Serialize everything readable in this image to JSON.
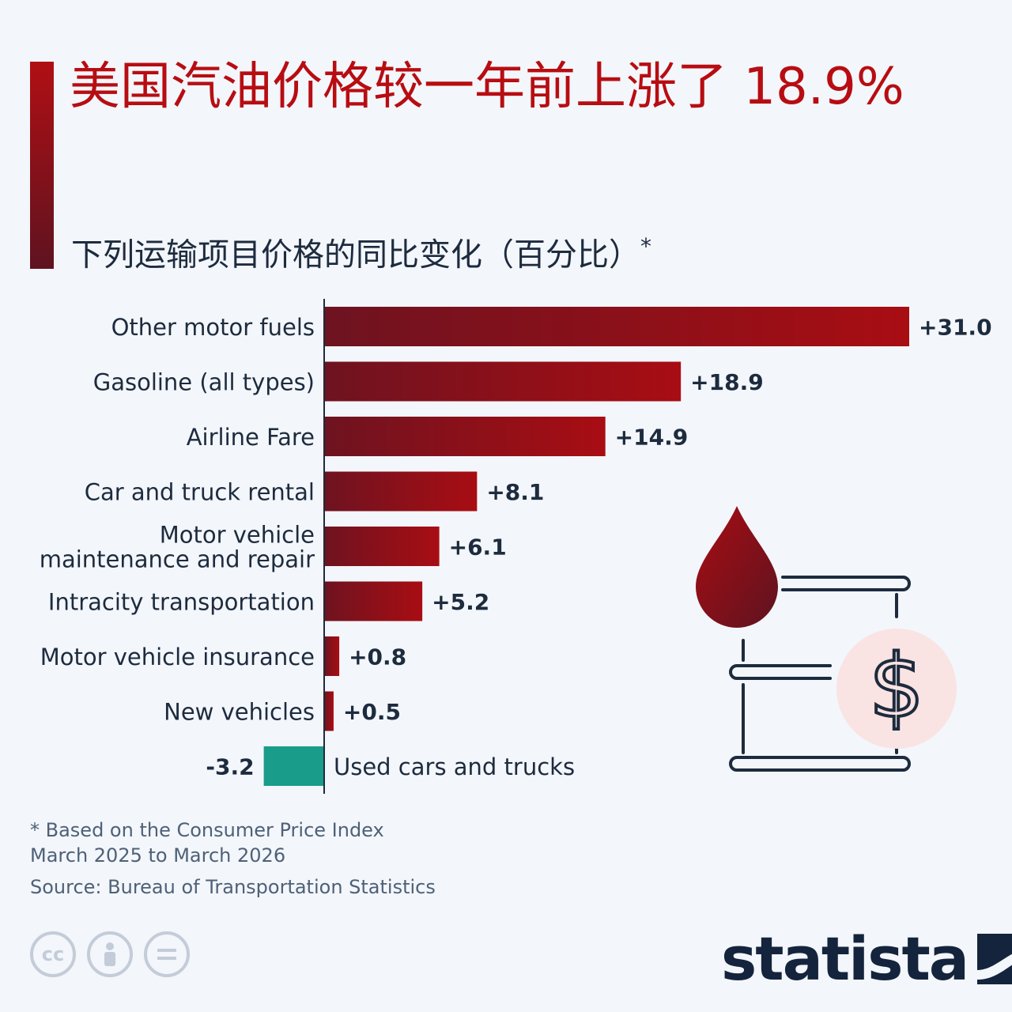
{
  "header": {
    "title": "美国汽油价格较一年前上涨了 18.9%",
    "subtitle": "下列运输项目价格的同比变化（百分比）",
    "subtitle_mark": "*"
  },
  "chart_data": {
    "type": "bar",
    "orientation": "horizontal",
    "categories": [
      "Other motor fuels",
      "Gasoline (all types)",
      "Airline Fare",
      "Car and truck rental",
      "Motor vehicle maintenance and repair",
      "Intracity transportation",
      "Motor vehicle insurance",
      "New vehicles",
      "Used cars and trucks"
    ],
    "category_lines": [
      [
        "Other motor fuels"
      ],
      [
        "Gasoline (all types)"
      ],
      [
        "Airline Fare"
      ],
      [
        "Car and truck rental"
      ],
      [
        "Motor vehicle",
        "maintenance and repair"
      ],
      [
        "Intracity transportation"
      ],
      [
        "Motor vehicle insurance"
      ],
      [
        "New vehicles"
      ],
      [
        "Used cars and trucks"
      ]
    ],
    "values": [
      31.0,
      18.9,
      14.9,
      8.1,
      6.1,
      5.2,
      0.8,
      0.5,
      -3.2
    ],
    "value_labels": [
      "+31.0",
      "+18.9",
      "+14.9",
      "+8.1",
      "+6.1",
      "+5.2",
      "+0.8",
      "+0.5",
      "-3.2"
    ],
    "xlim": [
      -3.2,
      31.0
    ],
    "grid": false,
    "colors": {
      "positive_start": "#6e1320",
      "positive_end": "#a80d13",
      "negative": "#1a9c8a",
      "axis": "#1d2b3e"
    }
  },
  "notes": {
    "footnote_line1": "* Based on the Consumer Price Index",
    "footnote_line2": "March 2025 to March 2026",
    "source": "Source: Bureau of Transportation Statistics"
  },
  "license_icons": [
    "cc-icon",
    "attribution-icon",
    "no-derivatives-icon"
  ],
  "brand": {
    "name": "statista"
  }
}
